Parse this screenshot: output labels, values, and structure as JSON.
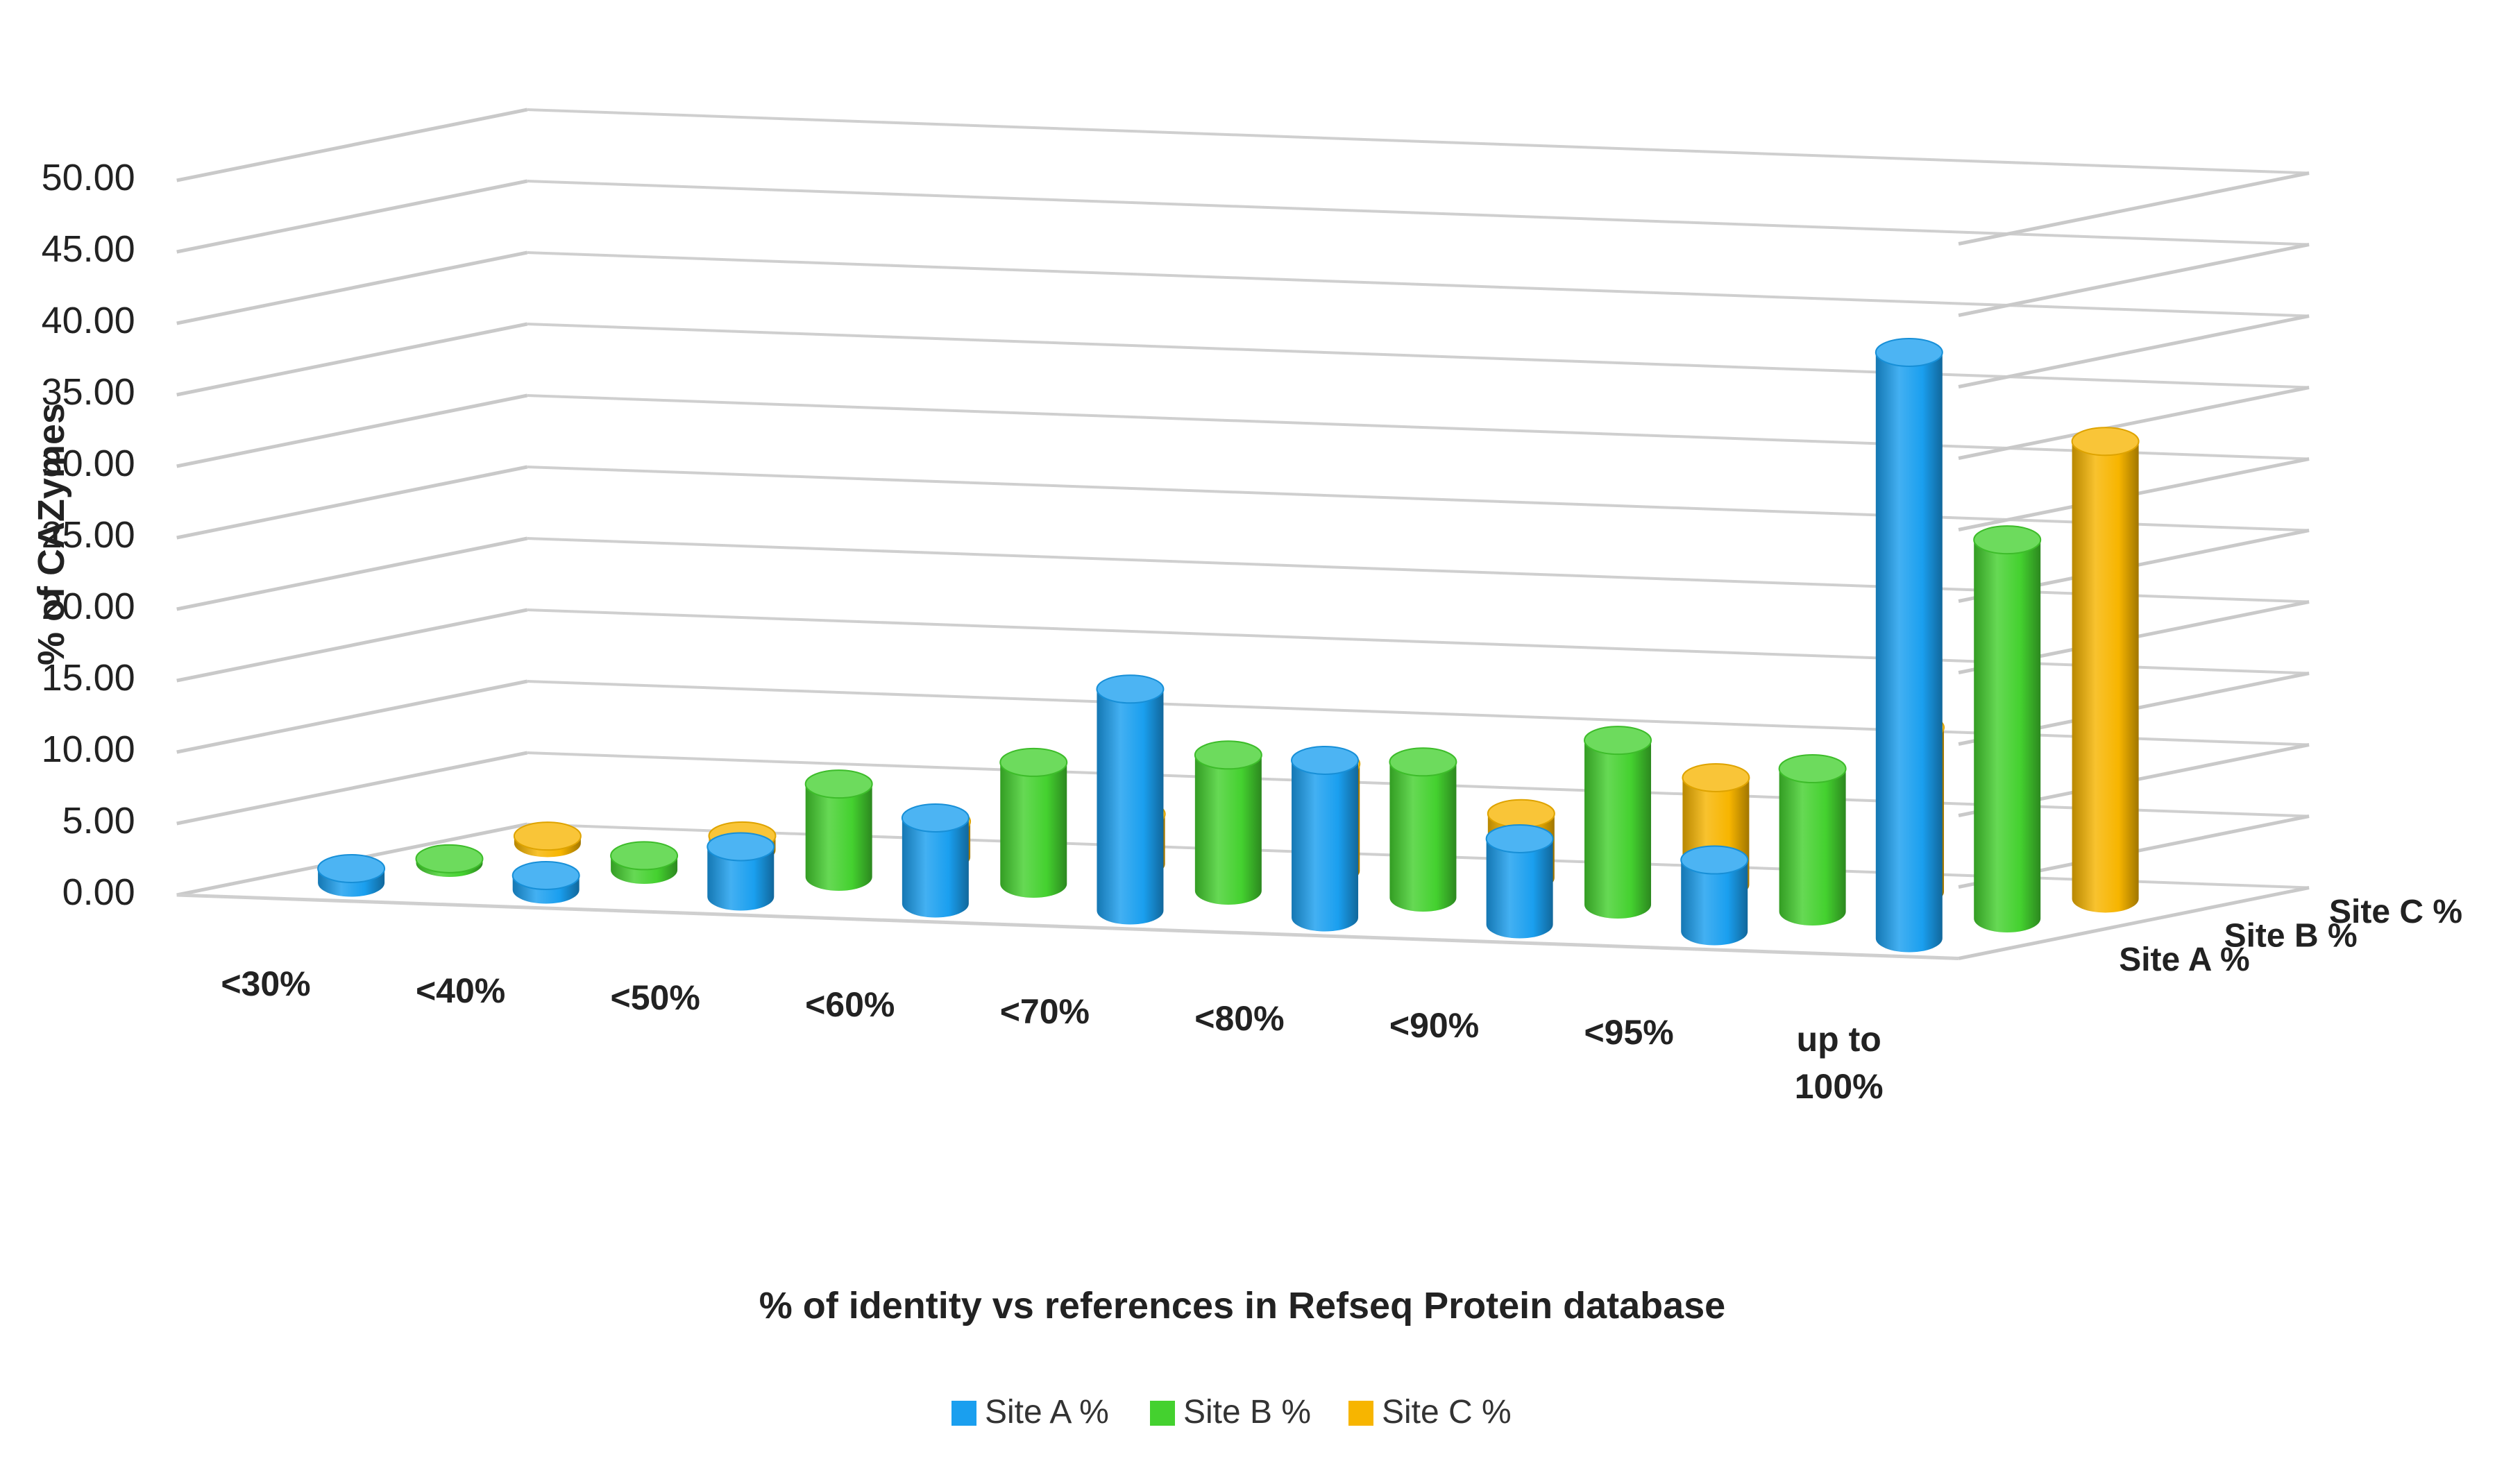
{
  "chart_data": {
    "type": "bar",
    "subtype": "3d-cylinder",
    "title": "",
    "ylabel": "% of CAZymes",
    "xlabel": "% of identity vs references in Refseq Protein database",
    "ylim": [
      0,
      50
    ],
    "yticks": [
      "0.00",
      "5.00",
      "10.00",
      "15.00",
      "20.00",
      "25.00",
      "30.00",
      "35.00",
      "40.00",
      "45.00",
      "50.00"
    ],
    "categories": [
      "<30%",
      "<40%",
      "<50%",
      "<60%",
      "<70%",
      "<80%",
      "<90%",
      "<95%",
      "up to 100%"
    ],
    "series": [
      {
        "name": "Site A %",
        "color": "#1a9fef",
        "values": [
          1.0,
          1.0,
          3.5,
          6.0,
          15.5,
          11.0,
          6.0,
          5.0,
          41.0
        ]
      },
      {
        "name": "Site B %",
        "color": "#44d12f",
        "values": [
          0.3,
          1.0,
          6.5,
          8.5,
          9.5,
          9.5,
          11.5,
          10.0,
          26.5
        ]
      },
      {
        "name": "Site C %",
        "color": "#f7b500",
        "values": [
          0.5,
          1.0,
          2.5,
          3.5,
          7.5,
          4.5,
          7.5,
          11.5,
          32.0
        ]
      }
    ],
    "depth_labels": [
      "Site A %",
      "Site B %",
      "Site C %"
    ],
    "legend": {
      "position": "bottom-center",
      "entries": [
        "Site A %",
        "Site B %",
        "Site C %"
      ]
    },
    "grid": true
  }
}
